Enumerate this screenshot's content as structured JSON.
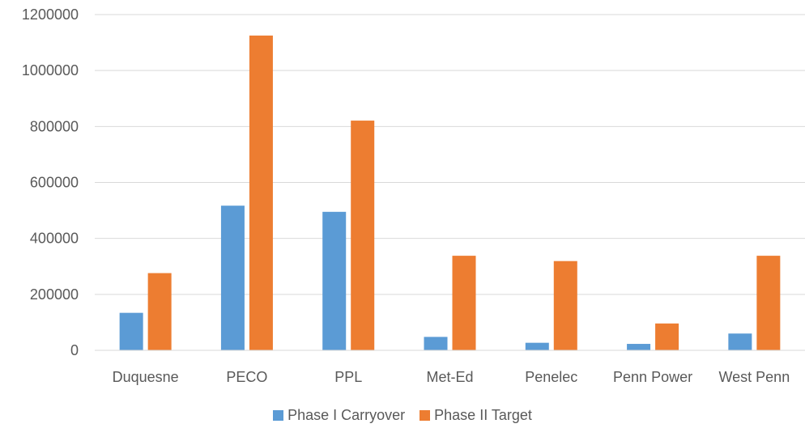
{
  "chart_data": {
    "type": "bar",
    "categories": [
      "Duquesne",
      "PECO",
      "PPL",
      "Met-Ed",
      "Penelec",
      "Penn Power",
      "West Penn"
    ],
    "series": [
      {
        "name": "Phase I Carryover",
        "color": "#5B9BD5",
        "values": [
          134000,
          517000,
          495000,
          48000,
          27000,
          23000,
          60000
        ]
      },
      {
        "name": "Phase II Target",
        "color": "#ED7D31",
        "values": [
          276000,
          1125000,
          821000,
          338000,
          319000,
          96000,
          338000
        ]
      }
    ],
    "yticks": [
      "0",
      "200000",
      "400000",
      "600000",
      "800000",
      "1000000",
      "1200000"
    ],
    "ylim": [
      0,
      1200000
    ],
    "grid": true,
    "legend_position": "bottom"
  }
}
